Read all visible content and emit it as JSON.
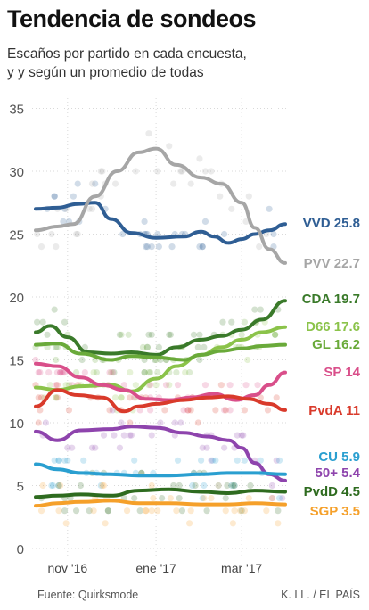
{
  "header": {
    "title": "Tendencia de sondeos",
    "subtitle_line1": "Escaños por partido en cada encuesta,",
    "subtitle_line2": "y y según un promedio de todas"
  },
  "footer": {
    "source": "Fuente: Quirksmode",
    "credit": "K. LL. / EL PAÍS"
  },
  "chart_data": {
    "type": "line",
    "title": "Tendencia de sondeos",
    "ylim": [
      0,
      35
    ],
    "yticks": [
      0,
      5,
      10,
      15,
      20,
      25,
      30,
      35
    ],
    "xlim": [
      "2016-10-10",
      "2017-03-31"
    ],
    "xticks": [
      {
        "date": "2016-11-01",
        "label": "nov '16"
      },
      {
        "date": "2017-01-01",
        "label": "ene '17"
      },
      {
        "date": "2017-03-01",
        "label": "mar '17"
      }
    ],
    "grid": true,
    "series": [
      {
        "name": "VVD",
        "label": "VVD 25.8",
        "color": "#2f5e94",
        "x": [
          "2016-10-10",
          "2016-10-25",
          "2016-11-08",
          "2016-11-20",
          "2016-12-01",
          "2016-12-15",
          "2017-01-01",
          "2017-01-20",
          "2017-02-01",
          "2017-02-10",
          "2017-02-20",
          "2017-03-01",
          "2017-03-10",
          "2017-03-20",
          "2017-03-31"
        ],
        "values": [
          27.0,
          27.1,
          27.4,
          27.5,
          26.2,
          25.1,
          24.7,
          24.8,
          25.2,
          24.8,
          24.3,
          24.6,
          25.0,
          25.3,
          25.8
        ]
      },
      {
        "name": "PVV",
        "label": "PVV 22.7",
        "color": "#a6a6a6",
        "x": [
          "2016-10-10",
          "2016-10-25",
          "2016-11-05",
          "2016-11-20",
          "2016-12-05",
          "2016-12-20",
          "2017-01-01",
          "2017-01-15",
          "2017-02-01",
          "2017-02-15",
          "2017-03-01",
          "2017-03-10",
          "2017-03-20",
          "2017-03-31"
        ],
        "values": [
          25.3,
          25.6,
          25.8,
          28.0,
          30.0,
          31.5,
          31.8,
          30.5,
          29.5,
          29.0,
          27.5,
          25.5,
          23.8,
          22.7
        ]
      },
      {
        "name": "CDA",
        "label": "CDA 19.7",
        "color": "#3a7a2a",
        "x": [
          "2016-10-10",
          "2016-10-20",
          "2016-11-01",
          "2016-11-15",
          "2016-12-01",
          "2016-12-15",
          "2017-01-01",
          "2017-01-15",
          "2017-02-01",
          "2017-02-15",
          "2017-03-01",
          "2017-03-15",
          "2017-03-31"
        ],
        "values": [
          17.2,
          17.7,
          16.8,
          15.6,
          15.5,
          15.6,
          15.4,
          16.0,
          16.6,
          16.9,
          17.4,
          18.2,
          19.7
        ]
      },
      {
        "name": "D66",
        "label": "D66 17.6",
        "color": "#8bc34a",
        "x": [
          "2016-10-10",
          "2016-10-25",
          "2016-11-10",
          "2016-12-01",
          "2016-12-15",
          "2017-01-01",
          "2017-01-15",
          "2017-02-01",
          "2017-02-15",
          "2017-03-01",
          "2017-03-15",
          "2017-03-31"
        ],
        "values": [
          12.8,
          12.6,
          12.9,
          13.0,
          12.5,
          13.5,
          14.5,
          15.4,
          16.0,
          16.6,
          17.2,
          17.6
        ]
      },
      {
        "name": "GL",
        "label": "GL 16.2",
        "color": "#6aaa3a",
        "x": [
          "2016-10-10",
          "2016-10-25",
          "2016-11-10",
          "2016-12-01",
          "2016-12-15",
          "2017-01-01",
          "2017-01-20",
          "2017-02-01",
          "2017-02-15",
          "2017-03-01",
          "2017-03-15",
          "2017-03-31"
        ],
        "values": [
          16.2,
          16.3,
          15.5,
          15.0,
          15.3,
          15.2,
          15.0,
          15.4,
          15.7,
          15.9,
          16.1,
          16.2
        ]
      },
      {
        "name": "SP",
        "label": "SP 14",
        "color": "#d94f8a",
        "x": [
          "2016-10-10",
          "2016-10-25",
          "2016-11-10",
          "2016-11-25",
          "2016-12-10",
          "2016-12-25",
          "2017-01-10",
          "2017-01-25",
          "2017-02-10",
          "2017-02-25",
          "2017-03-10",
          "2017-03-20",
          "2017-03-31"
        ],
        "values": [
          14.7,
          14.5,
          13.6,
          13.0,
          12.6,
          11.9,
          11.8,
          12.0,
          12.3,
          11.8,
          12.2,
          13.0,
          14.0
        ]
      },
      {
        "name": "PvdA",
        "label": "PvdA 11",
        "color": "#d93a2b",
        "x": [
          "2016-10-10",
          "2016-10-25",
          "2016-11-08",
          "2016-11-25",
          "2016-12-10",
          "2016-12-20",
          "2017-01-01",
          "2017-01-20",
          "2017-02-05",
          "2017-02-20",
          "2017-03-05",
          "2017-03-20",
          "2017-03-31"
        ],
        "values": [
          11.3,
          12.6,
          12.2,
          12.0,
          10.9,
          11.3,
          11.5,
          11.8,
          12.0,
          12.1,
          11.9,
          11.5,
          11.0
        ]
      },
      {
        "name": "50+",
        "label": "50+ 5.4",
        "color": "#8e44ad",
        "x": [
          "2016-10-10",
          "2016-10-25",
          "2016-11-10",
          "2016-12-01",
          "2016-12-15",
          "2017-01-01",
          "2017-01-20",
          "2017-02-05",
          "2017-02-20",
          "2017-03-01",
          "2017-03-10",
          "2017-03-20",
          "2017-03-31"
        ],
        "values": [
          9.3,
          8.6,
          9.4,
          9.5,
          9.7,
          9.6,
          9.2,
          8.9,
          8.6,
          8.0,
          6.8,
          5.9,
          5.4
        ]
      },
      {
        "name": "CU",
        "label": "CU 5.9",
        "color": "#2a9fd0",
        "x": [
          "2016-10-10",
          "2016-10-25",
          "2016-11-10",
          "2016-12-01",
          "2016-12-20",
          "2017-01-10",
          "2017-02-01",
          "2017-02-20",
          "2017-03-10",
          "2017-03-31"
        ],
        "values": [
          6.7,
          6.3,
          6.0,
          5.9,
          5.8,
          5.8,
          5.9,
          6.0,
          6.0,
          5.9
        ]
      },
      {
        "name": "PvdD",
        "label": "PvdD 4.5",
        "color": "#2e6b1f",
        "x": [
          "2016-10-10",
          "2016-10-25",
          "2016-11-10",
          "2016-12-01",
          "2016-12-20",
          "2017-01-10",
          "2017-02-01",
          "2017-02-20",
          "2017-03-10",
          "2017-03-31"
        ],
        "values": [
          4.1,
          4.2,
          4.3,
          4.2,
          4.6,
          4.7,
          4.5,
          4.4,
          4.6,
          4.5
        ]
      },
      {
        "name": "SGP",
        "label": "SGP 3.5",
        "color": "#f5a02a",
        "x": [
          "2016-10-10",
          "2016-10-25",
          "2016-11-10",
          "2016-12-01",
          "2016-12-20",
          "2017-01-10",
          "2017-02-01",
          "2017-02-20",
          "2017-03-10",
          "2017-03-31"
        ],
        "values": [
          3.4,
          3.6,
          3.7,
          3.8,
          3.6,
          3.6,
          3.5,
          3.5,
          3.6,
          3.5
        ]
      }
    ]
  }
}
